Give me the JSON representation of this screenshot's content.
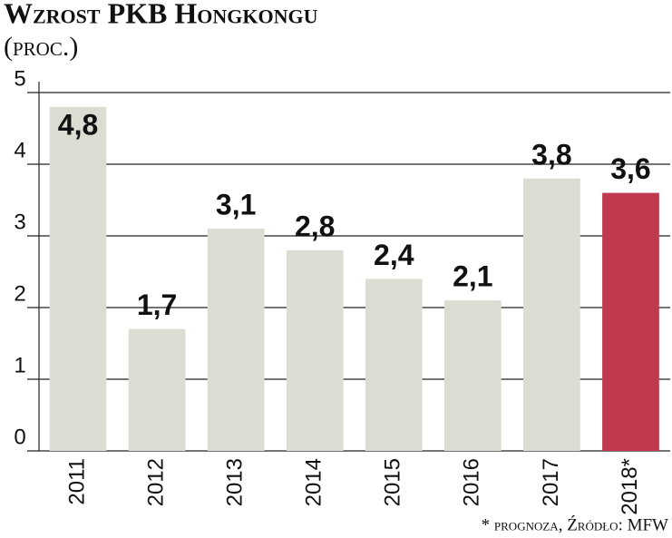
{
  "chart_data": {
    "type": "bar",
    "title": "Wzrost PKB Hongkongu",
    "subtitle": "(proc.)",
    "categories": [
      "2011",
      "2012",
      "2013",
      "2014",
      "2015",
      "2016",
      "2017",
      "2018*"
    ],
    "values": [
      4.8,
      1.7,
      3.1,
      2.8,
      2.4,
      2.1,
      3.8,
      3.6
    ],
    "value_labels": [
      "4,8",
      "1,7",
      "3,1",
      "2,8",
      "2,4",
      "2,1",
      "3,8",
      "3,6"
    ],
    "colors": [
      "#dddcd3",
      "#dddcd3",
      "#dddcd3",
      "#dddcd3",
      "#dddcd3",
      "#dddcd3",
      "#dddcd3",
      "#c0394f"
    ],
    "ylim": [
      0,
      5
    ],
    "yticks": [
      0,
      1,
      2,
      3,
      4,
      5
    ],
    "grid": true,
    "note": "* prognoza, Źródło: MFW"
  }
}
